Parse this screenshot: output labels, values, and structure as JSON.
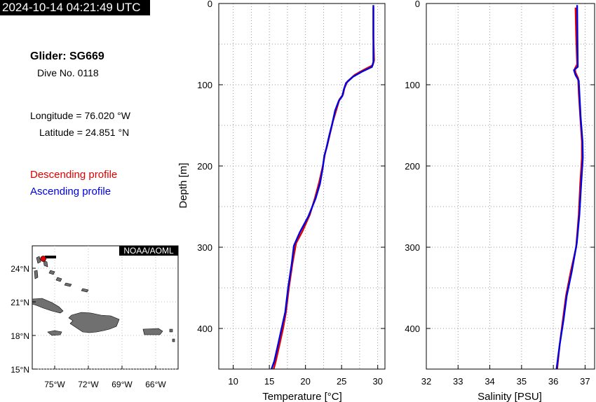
{
  "timestamp": "2024-10-14 04:21:49 UTC",
  "info": {
    "glider": "Glider: SG669",
    "dive": "Dive No. 0118",
    "longitude": "Longitude = 76.020 °W",
    "latitude": "Latitude = 24.851 °N",
    "descending_label": "Descending profile",
    "ascending_label": "Ascending profile"
  },
  "colors": {
    "descending": "#e00000",
    "ascending": "#0000e0"
  },
  "map": {
    "credit": "NOAA/AOML",
    "lat_ticks": [
      "24°N",
      "21°N",
      "18°N",
      "15°N"
    ],
    "lon_ticks": [
      "75°W",
      "72°W",
      "69°W",
      "66°W"
    ],
    "xlim": [
      -77,
      -64
    ],
    "ylim": [
      15,
      26
    ],
    "glider_position": [
      -76.02,
      24.851
    ]
  },
  "chart_data": [
    {
      "type": "line",
      "xlabel": "Temperature [°C]",
      "ylabel": "Depth [m]",
      "xlim": [
        8,
        31
      ],
      "ylim": [
        450,
        0
      ],
      "x_ticks": [
        10,
        15,
        20,
        25,
        30
      ],
      "y_ticks": [
        0,
        100,
        200,
        300,
        400
      ],
      "grid": true,
      "series": [
        {
          "name": "Descending profile",
          "color": "#e00000",
          "points": [
            [
              29.4,
              5
            ],
            [
              29.4,
              40
            ],
            [
              29.5,
              70
            ],
            [
              29.3,
              76
            ],
            [
              28,
              82
            ],
            [
              26.8,
              88
            ],
            [
              25.8,
              96
            ],
            [
              25.4,
              104
            ],
            [
              25.2,
              112
            ],
            [
              24.7,
              118
            ],
            [
              24.3,
              130
            ],
            [
              23.8,
              145
            ],
            [
              23.4,
              160
            ],
            [
              23,
              175
            ],
            [
              22.7,
              185
            ],
            [
              22.4,
              200
            ],
            [
              21.9,
              220
            ],
            [
              21.3,
              240
            ],
            [
              20.6,
              260
            ],
            [
              19.6,
              280
            ],
            [
              18.7,
              295
            ],
            [
              18.2,
              320
            ],
            [
              17.7,
              350
            ],
            [
              17.3,
              380
            ],
            [
              16.9,
              400
            ],
            [
              16.4,
              420
            ],
            [
              15.9,
              440
            ],
            [
              15.6,
              450
            ]
          ]
        },
        {
          "name": "Ascending profile",
          "color": "#0000e0",
          "points": [
            [
              29.4,
              2
            ],
            [
              29.4,
              40
            ],
            [
              29.4,
              72
            ],
            [
              29.2,
              78
            ],
            [
              27.8,
              84
            ],
            [
              26.6,
              90
            ],
            [
              25.6,
              98
            ],
            [
              25.3,
              106
            ],
            [
              25.1,
              114
            ],
            [
              24.6,
              120
            ],
            [
              24.1,
              132
            ],
            [
              23.7,
              148
            ],
            [
              23.3,
              162
            ],
            [
              22.9,
              178
            ],
            [
              22.6,
              188
            ],
            [
              22.4,
              202
            ],
            [
              22,
              222
            ],
            [
              21.4,
              240
            ],
            [
              20.4,
              262
            ],
            [
              19.2,
              282
            ],
            [
              18.4,
              298
            ],
            [
              18.1,
              320
            ],
            [
              17.6,
              350
            ],
            [
              17.2,
              380
            ],
            [
              16.7,
              400
            ],
            [
              16.2,
              420
            ],
            [
              15.7,
              440
            ],
            [
              15.3,
              450
            ]
          ]
        }
      ]
    },
    {
      "type": "line",
      "xlabel": "Salinity [PSU]",
      "ylabel": "",
      "xlim": [
        32,
        37.3
      ],
      "ylim": [
        450,
        0
      ],
      "x_ticks": [
        32,
        33,
        34,
        35,
        36,
        37
      ],
      "y_ticks": [
        0,
        100,
        200,
        300,
        400
      ],
      "grid": true,
      "series": [
        {
          "name": "Descending profile",
          "color": "#e00000",
          "points": [
            [
              36.7,
              5
            ],
            [
              36.72,
              40
            ],
            [
              36.75,
              75
            ],
            [
              36.68,
              80
            ],
            [
              36.7,
              85
            ],
            [
              36.78,
              92
            ],
            [
              36.8,
              110
            ],
            [
              36.85,
              140
            ],
            [
              36.9,
              170
            ],
            [
              36.9,
              190
            ],
            [
              36.85,
              220
            ],
            [
              36.8,
              260
            ],
            [
              36.72,
              300
            ],
            [
              36.55,
              330
            ],
            [
              36.4,
              360
            ],
            [
              36.3,
              390
            ],
            [
              36.2,
              420
            ],
            [
              36.12,
              450
            ]
          ]
        },
        {
          "name": "Ascending profile",
          "color": "#0000e0",
          "points": [
            [
              36.75,
              2
            ],
            [
              36.76,
              40
            ],
            [
              36.77,
              78
            ],
            [
              36.65,
              82
            ],
            [
              36.7,
              88
            ],
            [
              36.8,
              95
            ],
            [
              36.82,
              110
            ],
            [
              36.86,
              140
            ],
            [
              36.92,
              170
            ],
            [
              36.93,
              190
            ],
            [
              36.88,
              220
            ],
            [
              36.82,
              260
            ],
            [
              36.74,
              295
            ],
            [
              36.58,
              330
            ],
            [
              36.42,
              360
            ],
            [
              36.32,
              390
            ],
            [
              36.2,
              420
            ],
            [
              36.1,
              450
            ]
          ]
        }
      ]
    }
  ]
}
